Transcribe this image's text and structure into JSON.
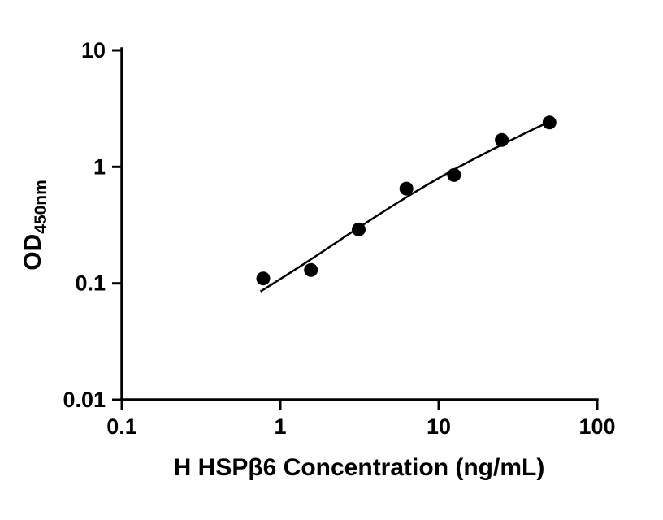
{
  "chart_data": {
    "type": "scatter",
    "title": "",
    "xlabel": "H HSPβ6 Concentration (ng/mL)",
    "ylabel_main": "OD",
    "ylabel_sub": "450nm",
    "x_scale": "log",
    "y_scale": "log",
    "xlim": [
      0.1,
      100
    ],
    "ylim": [
      0.01,
      10
    ],
    "x_ticks": [
      0.1,
      1,
      10,
      100
    ],
    "x_tick_labels": [
      "0.1",
      "1",
      "10",
      "100"
    ],
    "y_ticks": [
      10,
      1,
      0.1,
      0.01
    ],
    "y_tick_labels": [
      "10",
      "1",
      "0.1",
      "0.01"
    ],
    "grid": false,
    "legend": "none",
    "background_color": "#ffffff",
    "axis_color": "#000000",
    "point_color": "#000000",
    "curve_color": "#000000",
    "marker": "filled-circle",
    "points": [
      {
        "x": 0.78,
        "y": 0.11
      },
      {
        "x": 1.56,
        "y": 0.13
      },
      {
        "x": 3.125,
        "y": 0.29
      },
      {
        "x": 6.25,
        "y": 0.65
      },
      {
        "x": 12.5,
        "y": 0.85
      },
      {
        "x": 25,
        "y": 1.7
      },
      {
        "x": 50,
        "y": 2.4
      }
    ],
    "fit_curve": [
      {
        "x": 0.75,
        "y": 0.085
      },
      {
        "x": 1.5,
        "y": 0.155
      },
      {
        "x": 3.0,
        "y": 0.29
      },
      {
        "x": 6.0,
        "y": 0.53
      },
      {
        "x": 12.0,
        "y": 0.92
      },
      {
        "x": 25,
        "y": 1.55
      },
      {
        "x": 50,
        "y": 2.45
      }
    ]
  }
}
